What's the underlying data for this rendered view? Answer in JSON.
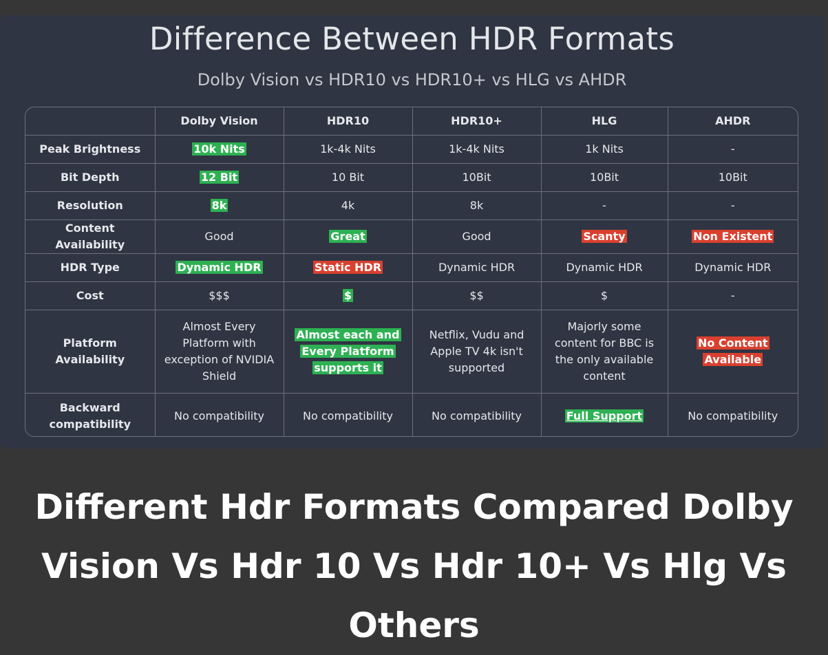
{
  "title": "Difference Between HDR Formats",
  "subtitle": "Dolby Vision vs HDR10 vs HDR10+ vs HLG vs AHDR",
  "colors": {
    "background": "#363636",
    "card": "#2f3542",
    "green": "#2eb153",
    "red": "#d9402f"
  },
  "table": {
    "headers": [
      "",
      "Dolby Vision",
      "HDR10",
      "HDR10+",
      "HLG",
      "AHDR"
    ],
    "rows": [
      {
        "label": "Peak Brightness",
        "cells": [
          {
            "text": "10k Nits",
            "highlight": "green"
          },
          {
            "text": "1k-4k Nits"
          },
          {
            "text": "1k-4k Nits"
          },
          {
            "text": "1k Nits"
          },
          {
            "text": "-"
          }
        ]
      },
      {
        "label": "Bit Depth",
        "cells": [
          {
            "text": "12 Bit",
            "highlight": "green"
          },
          {
            "text": "10 Bit"
          },
          {
            "text": "10Bit"
          },
          {
            "text": "10Bit"
          },
          {
            "text": "10Bit"
          }
        ]
      },
      {
        "label": "Resolution",
        "cells": [
          {
            "text": "8k",
            "highlight": "green"
          },
          {
            "text": "4k"
          },
          {
            "text": "8k"
          },
          {
            "text": "-"
          },
          {
            "text": "-"
          }
        ]
      },
      {
        "label": "Content Availability",
        "cells": [
          {
            "text": "Good"
          },
          {
            "text": "Great",
            "highlight": "green"
          },
          {
            "text": "Good"
          },
          {
            "text": "Scanty",
            "highlight": "red"
          },
          {
            "text": "Non Existent",
            "highlight": "red"
          }
        ]
      },
      {
        "label": "HDR Type",
        "cells": [
          {
            "text": "Dynamic HDR",
            "highlight": "green"
          },
          {
            "text": "Static HDR",
            "highlight": "red"
          },
          {
            "text": "Dynamic HDR"
          },
          {
            "text": "Dynamic HDR"
          },
          {
            "text": "Dynamic HDR"
          }
        ]
      },
      {
        "label": "Cost",
        "cells": [
          {
            "text": "$$$"
          },
          {
            "text": "$",
            "highlight": "green"
          },
          {
            "text": "$$"
          },
          {
            "text": "$"
          },
          {
            "text": "-"
          }
        ]
      },
      {
        "label": "Platform Availability",
        "cells": [
          {
            "text": "Almost Every Platform with exception of NVIDIA Shield"
          },
          {
            "text": "Almost each and Every Platform supports it",
            "highlight": "green"
          },
          {
            "text": "Netflix, Vudu and Apple TV 4k isn't supported"
          },
          {
            "text": "Majorly some content for BBC is the only available content"
          },
          {
            "text": "No Content Available",
            "highlight": "red"
          }
        ]
      },
      {
        "label": "Backward compatibility",
        "cells": [
          {
            "text": "No compatibility"
          },
          {
            "text": "No compatibility"
          },
          {
            "text": "No compatibility"
          },
          {
            "text": "Full Support",
            "highlight": "green",
            "underline": true
          },
          {
            "text": "No compatibility"
          }
        ]
      }
    ]
  },
  "caption": "Different Hdr Formats Compared Dolby Vision Vs Hdr 10 Vs Hdr 10+ Vs Hlg Vs Others"
}
